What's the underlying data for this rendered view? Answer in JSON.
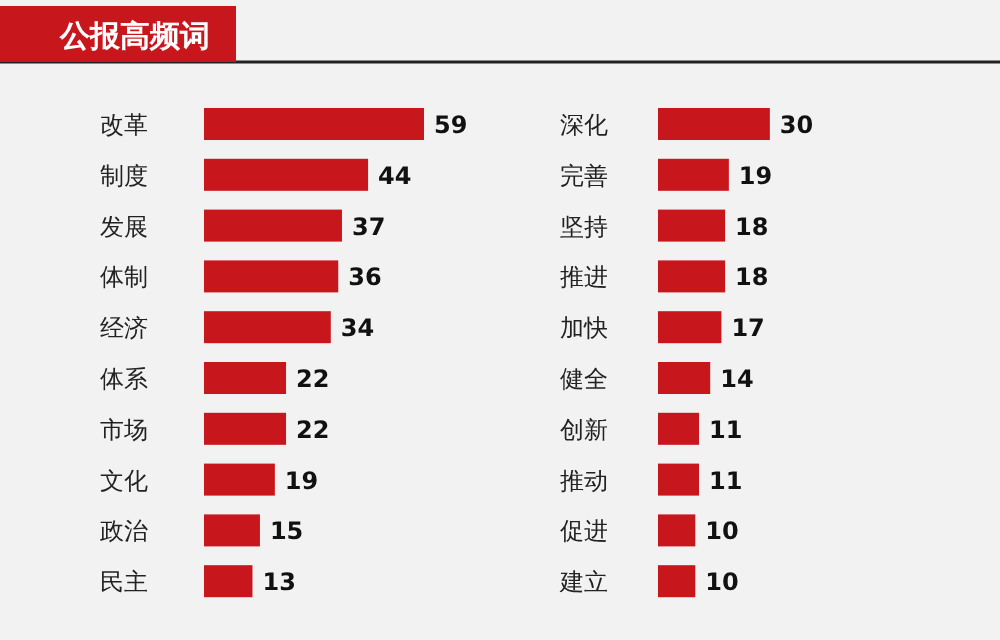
{
  "chart_data": [
    {
      "type": "bar",
      "title": "公报高频词",
      "orientation": "horizontal",
      "color": "#c8161d",
      "data_labels": true,
      "categories": [
        "改革",
        "制度",
        "发展",
        "体制",
        "经济",
        "体系",
        "市场",
        "文化",
        "政治",
        "民主"
      ],
      "values": [
        59,
        44,
        37,
        36,
        34,
        22,
        22,
        19,
        15,
        13
      ]
    },
    {
      "type": "bar",
      "orientation": "horizontal",
      "color": "#c8161d",
      "data_labels": true,
      "categories": [
        "深化",
        "完善",
        "坚持",
        "推进",
        "加快",
        "健全",
        "创新",
        "推动",
        "促进",
        "建立"
      ],
      "values": [
        30,
        19,
        18,
        18,
        17,
        14,
        11,
        11,
        10,
        10
      ]
    }
  ]
}
